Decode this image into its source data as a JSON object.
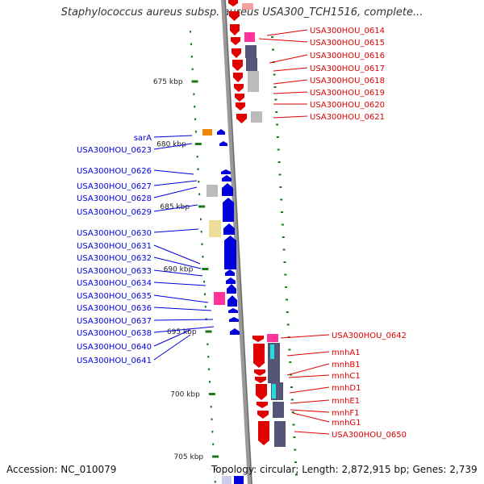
{
  "title": "Staphylococcus aureus subsp. aureus USA300_TCH1516, complete...",
  "accession": "Accession: NC_010079",
  "summary": "Topology: circular; Length: 2,872,915 bp; Genes: 2,739",
  "ruler": {
    "ticks": [
      {
        "label": "675 kbp",
        "kbp": 675
      },
      {
        "label": "680 kbp",
        "kbp": 680
      },
      {
        "label": "685 kbp",
        "kbp": 685
      },
      {
        "label": "690 kbp",
        "kbp": 690
      },
      {
        "label": "695 kbp",
        "kbp": 695
      },
      {
        "label": "700 kbp",
        "kbp": 700
      },
      {
        "label": "705 kbp",
        "kbp": 705
      }
    ]
  },
  "genes_right_top": [
    "USA300HOU_0614",
    "USA300HOU_0615",
    "USA300HOU_0616",
    "USA300HOU_0617",
    "USA300HOU_0618",
    "USA300HOU_0619",
    "USA300HOU_0620",
    "USA300HOU_0621"
  ],
  "genes_left": [
    "sarA",
    "USA300HOU_0623",
    "USA300HOU_0626",
    "USA300HOU_0627",
    "USA300HOU_0628",
    "USA300HOU_0629",
    "USA300HOU_0630",
    "USA300HOU_0631",
    "USA300HOU_0632",
    "USA300HOU_0633",
    "USA300HOU_0634",
    "USA300HOU_0635",
    "USA300HOU_0636",
    "USA300HOU_0637",
    "USA300HOU_0638",
    "USA300HOU_0640",
    "USA300HOU_0641"
  ],
  "genes_right_bottom": [
    "USA300HOU_0642",
    "mnhA1",
    "mnhB1",
    "mnhC1",
    "mnhD1",
    "mnhE1",
    "mnhF1",
    "mnhG1",
    "USA300HOU_0650"
  ],
  "colors": {
    "forward": "#e00000",
    "reverse": "#0000dd",
    "backbone": "#999999",
    "tick": "#1a7a1a",
    "magenta": "#ff3399",
    "slate": "#555577",
    "cyan": "#22dddd",
    "khaki": "#eedd99",
    "orange": "#ee8800",
    "grey": "#bbbbbb"
  }
}
